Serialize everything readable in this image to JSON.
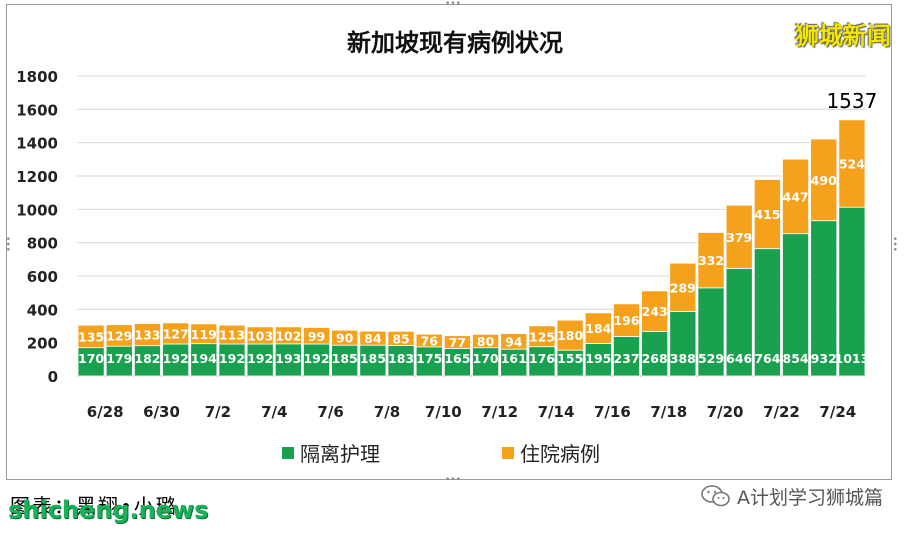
{
  "chart_data": {
    "type": "bar",
    "stacked": true,
    "title": "新加坡现有病例状况",
    "categories": [
      "6/28",
      "6/29",
      "6/30",
      "7/1",
      "7/2",
      "7/3",
      "7/4",
      "7/5",
      "7/6",
      "7/7",
      "7/8",
      "7/9",
      "7/10",
      "7/11",
      "7/12",
      "7/13",
      "7/14",
      "7/15",
      "7/16",
      "7/17",
      "7/18",
      "7/19",
      "7/20",
      "7/21",
      "7/22",
      "7/23",
      "7/24",
      "7/25"
    ],
    "tick_labels": [
      "6/28",
      "6/30",
      "7/2",
      "7/4",
      "7/6",
      "7/8",
      "7/10",
      "7/12",
      "7/14",
      "7/16",
      "7/18",
      "7/20",
      "7/22",
      "7/24"
    ],
    "series": [
      {
        "name": "隔离护理",
        "color": "#1aa150",
        "values": [
          170,
          179,
          182,
          192,
          194,
          192,
          192,
          193,
          192,
          185,
          185,
          183,
          175,
          165,
          170,
          161,
          176,
          155,
          195,
          237,
          268,
          388,
          529,
          646,
          764,
          854,
          932,
          1013
        ]
      },
      {
        "name": "住院病例",
        "color": "#f5a11c",
        "values": [
          135,
          129,
          133,
          127,
          119,
          113,
          103,
          102,
          99,
          90,
          84,
          85,
          76,
          77,
          80,
          94,
          125,
          180,
          184,
          196,
          243,
          289,
          332,
          379,
          415,
          447,
          490,
          524
        ]
      }
    ],
    "yticks": [
      0,
      200,
      400,
      600,
      800,
      1000,
      1200,
      1400,
      1600,
      1800
    ],
    "ylim": [
      0,
      1800
    ],
    "top_annotation": "1537",
    "grid": true,
    "legend_position": "bottom"
  },
  "watermark": "狮城新闻",
  "credit": "图表：黑翔•小璐",
  "site": "shicheng.news",
  "wechat": {
    "icon": "wechat-icon",
    "text": "A计划学习狮城篇"
  }
}
